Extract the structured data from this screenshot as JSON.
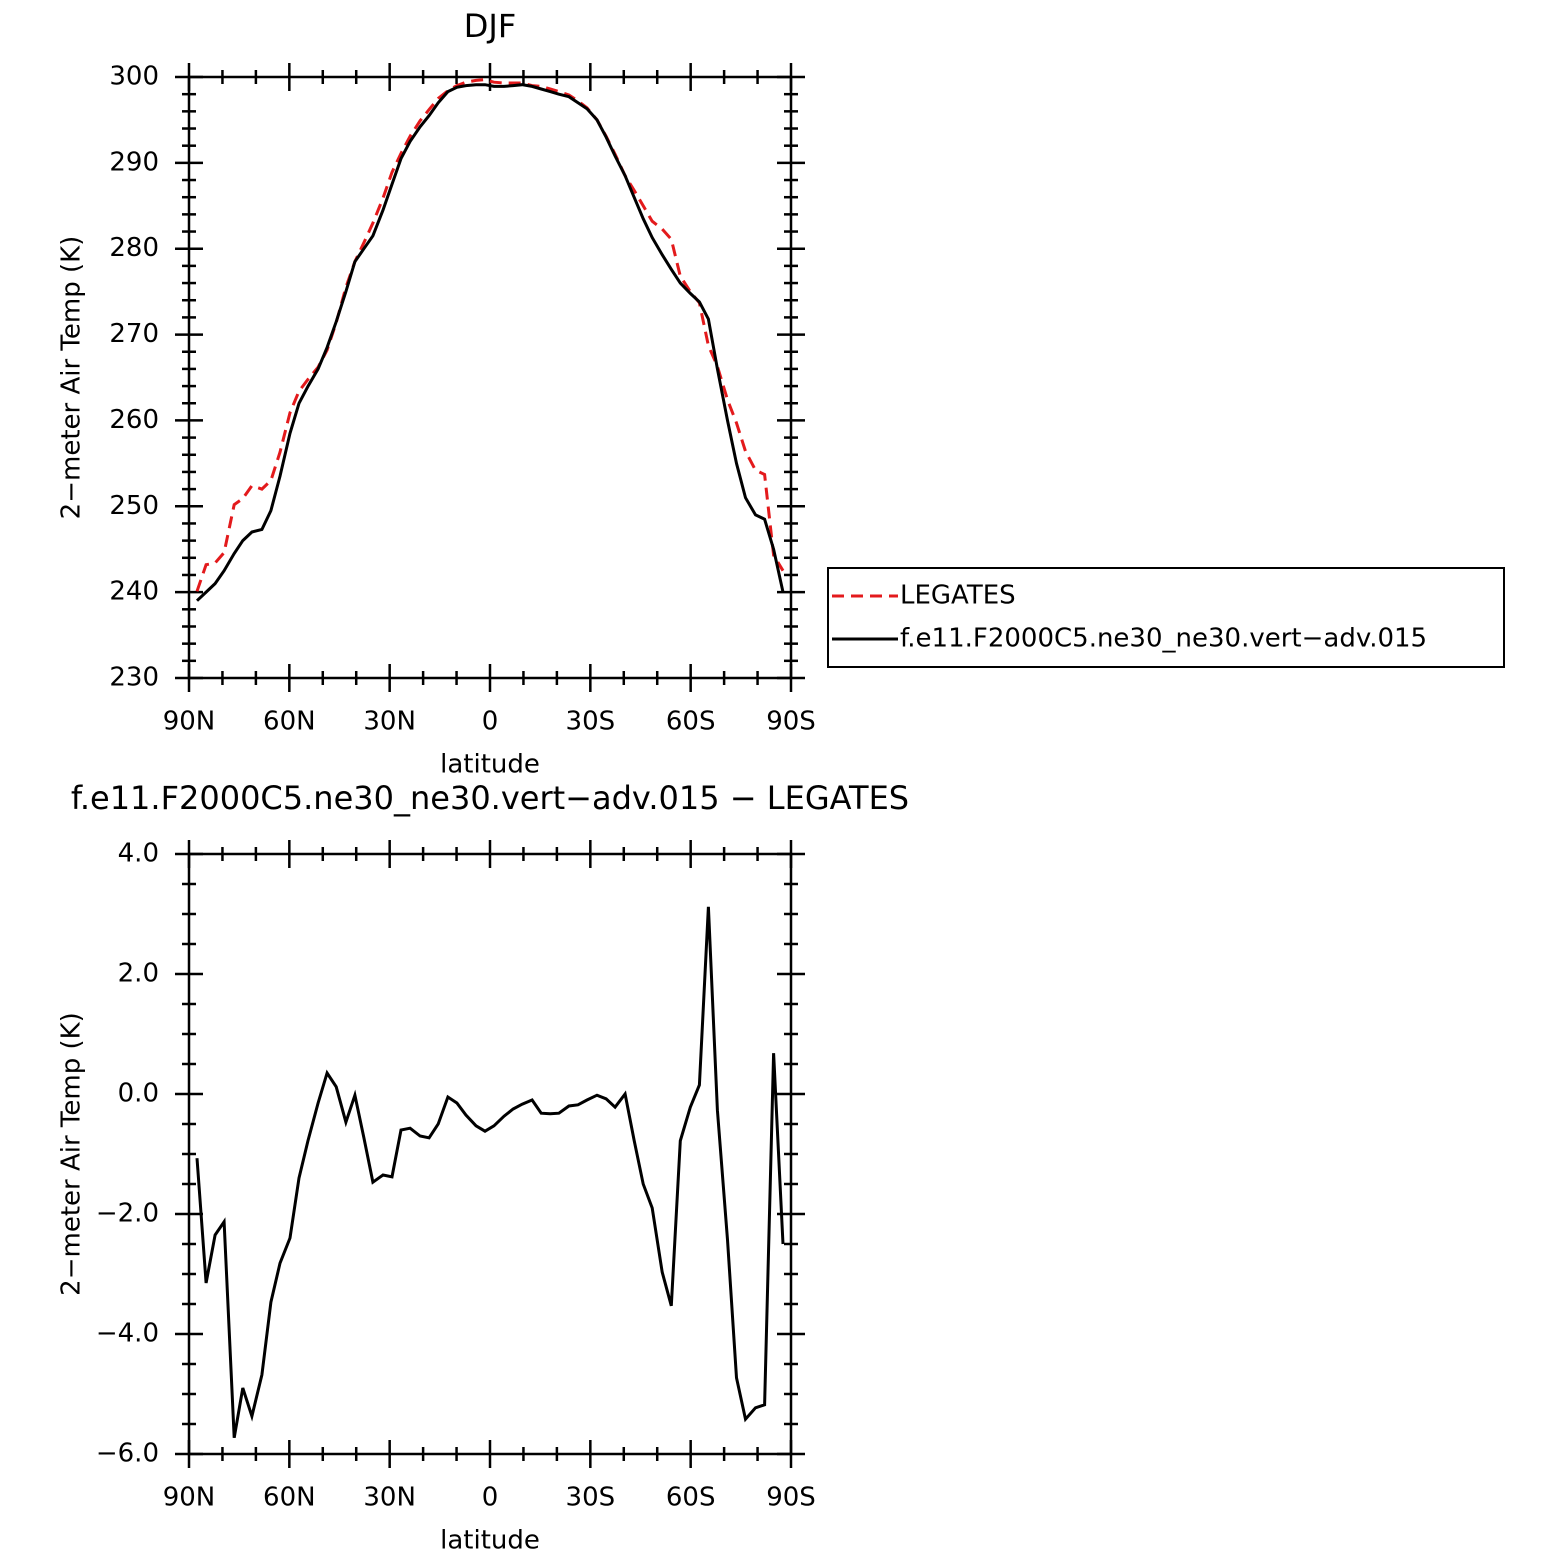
{
  "chart_data": [
    {
      "type": "line",
      "title": "DJF",
      "x_label": "latitude",
      "y_label": "2−meter Air Temp (K)",
      "x": [
        87.6,
        84.9,
        82.2,
        79.5,
        76.5,
        73.9,
        71.2,
        68.2,
        65.5,
        62.8,
        59.8,
        57.1,
        54.4,
        51.4,
        48.7,
        46.0,
        43.1,
        40.4,
        37.7,
        35.0,
        32.0,
        29.3,
        26.6,
        23.9,
        20.9,
        18.2,
        15.5,
        12.6,
        9.9,
        7.2,
        4.2,
        1.5,
        -1.2,
        -4.2,
        -6.9,
        -9.6,
        -12.6,
        -15.3,
        -18.0,
        -20.6,
        -23.6,
        -26.3,
        -29.0,
        -32.0,
        -34.7,
        -37.4,
        -40.4,
        -43.1,
        -45.8,
        -48.5,
        -51.5,
        -54.2,
        -56.9,
        -59.9,
        -62.6,
        -65.3,
        -68.0,
        -71.0,
        -73.7,
        -76.4,
        -79.4,
        -82.1,
        -84.8,
        -87.6
      ],
      "xlim": [
        90,
        -90
      ],
      "xticks": [
        {
          "value": 90,
          "label": "90N"
        },
        {
          "value": 60,
          "label": "60N"
        },
        {
          "value": 30,
          "label": "30N"
        },
        0,
        {
          "value": -30,
          "label": "30S"
        },
        {
          "value": -60,
          "label": "60S"
        },
        {
          "value": -90,
          "label": "90S"
        }
      ],
      "minor_xticks": [
        80,
        70,
        50,
        40,
        20,
        10,
        -10,
        -20,
        -40,
        -50,
        -70,
        -80
      ],
      "ylim": [
        230,
        300
      ],
      "yticks": [
        230,
        240,
        250,
        260,
        270,
        280,
        290,
        300
      ],
      "minor_yticks": [
        232,
        234,
        236,
        238,
        242,
        244,
        246,
        248,
        252,
        254,
        256,
        258,
        262,
        264,
        266,
        268,
        272,
        274,
        276,
        278,
        282,
        284,
        286,
        288,
        292,
        294,
        296,
        298
      ],
      "legend": "right",
      "series": [
        {
          "name": "LEGATES",
          "color": "#e31a1c",
          "dashed": true,
          "values": [
            240.1,
            243.2,
            243.4,
            244.6,
            250.2,
            250.9,
            252.4,
            252.0,
            253.0,
            256.3,
            260.9,
            263.4,
            264.8,
            266.2,
            268.2,
            271.4,
            275.5,
            278.5,
            280.7,
            283.0,
            285.9,
            288.9,
            291.1,
            293.1,
            294.9,
            296.2,
            297.5,
            298.4,
            299.0,
            299.4,
            299.6,
            299.7,
            299.4,
            299.3,
            299.3,
            299.3,
            299.0,
            298.9,
            298.6,
            298.3,
            297.9,
            297.2,
            296.4,
            295.0,
            293.1,
            291.0,
            288.5,
            286.8,
            285.0,
            283.2,
            282.3,
            281.1,
            276.8,
            275.0,
            273.7,
            268.7,
            266.3,
            262.4,
            259.7,
            256.4,
            254.2,
            253.7,
            244.3,
            242.5
          ]
        },
        {
          "name": "f.e11.F2000C5.ne30_ne30.vert−adv.015",
          "color": "#000000",
          "dashed": false,
          "values": [
            239.0,
            240.0,
            241.0,
            242.5,
            244.5,
            246.0,
            247.0,
            247.3,
            249.5,
            253.5,
            258.5,
            262.0,
            264.0,
            266.0,
            268.5,
            271.5,
            275.0,
            278.5,
            280.0,
            281.5,
            284.5,
            287.5,
            290.5,
            292.5,
            294.2,
            295.5,
            297.0,
            298.3,
            298.8,
            299.0,
            299.1,
            299.1,
            298.9,
            298.9,
            299.0,
            299.1,
            298.9,
            298.6,
            298.3,
            298.0,
            297.7,
            297.0,
            296.3,
            295.0,
            293.0,
            290.8,
            288.5,
            286.0,
            283.5,
            281.3,
            279.3,
            277.6,
            276.0,
            274.8,
            273.8,
            271.8,
            266.0,
            260.0,
            255.0,
            251.0,
            249.0,
            248.5,
            245.0,
            240.0
          ]
        }
      ]
    },
    {
      "type": "line",
      "title": "f.e11.F2000C5.ne30_ne30.vert−adv.015 − LEGATES",
      "x_label": "latitude",
      "y_label": "2−meter Air Temp (K)",
      "x": [
        87.6,
        84.9,
        82.2,
        79.5,
        76.5,
        73.9,
        71.2,
        68.2,
        65.5,
        62.8,
        59.8,
        57.1,
        54.4,
        51.4,
        48.7,
        46.0,
        43.1,
        40.4,
        37.7,
        35.0,
        32.0,
        29.3,
        26.6,
        23.9,
        20.9,
        18.2,
        15.5,
        12.6,
        9.9,
        7.2,
        4.2,
        1.5,
        -1.2,
        -4.2,
        -6.9,
        -9.6,
        -12.6,
        -15.3,
        -18.0,
        -20.6,
        -23.6,
        -26.3,
        -29.0,
        -32.0,
        -34.7,
        -37.4,
        -40.4,
        -43.1,
        -45.8,
        -48.5,
        -51.5,
        -54.2,
        -56.9,
        -59.9,
        -62.6,
        -65.3,
        -68.0,
        -71.0,
        -73.7,
        -76.4,
        -79.4,
        -82.1,
        -84.8,
        -87.6
      ],
      "xlim": [
        90,
        -90
      ],
      "xticks": [
        {
          "value": 90,
          "label": "90N"
        },
        {
          "value": 60,
          "label": "60N"
        },
        {
          "value": 30,
          "label": "30N"
        },
        0,
        {
          "value": -30,
          "label": "30S"
        },
        {
          "value": -60,
          "label": "60S"
        },
        {
          "value": -90,
          "label": "90S"
        }
      ],
      "minor_xticks": [
        80,
        70,
        50,
        40,
        20,
        10,
        -10,
        -20,
        -40,
        -50,
        -70,
        -80
      ],
      "ylim": [
        -6,
        4
      ],
      "yticks": [
        {
          "value": -6,
          "label": "−6.0"
        },
        {
          "value": -4,
          "label": "−4.0"
        },
        {
          "value": -2,
          "label": "−2.0"
        },
        {
          "value": 0,
          "label": "0.0"
        },
        {
          "value": 2,
          "label": "2.0"
        },
        {
          "value": 4,
          "label": "4.0"
        }
      ],
      "minor_yticks": [
        -5.5,
        -5,
        -4.5,
        -3.5,
        -3,
        -2.5,
        -1.5,
        -1,
        -0.5,
        0.5,
        1,
        1.5,
        2.5,
        3,
        3.5
      ],
      "color": "#000000",
      "values": [
        -1.07,
        -3.15,
        -2.35,
        -2.13,
        -5.73,
        -4.9,
        -5.37,
        -4.68,
        -3.47,
        -2.82,
        -2.4,
        -1.4,
        -0.77,
        -0.15,
        0.35,
        0.12,
        -0.47,
        -0.02,
        -0.73,
        -1.47,
        -1.35,
        -1.38,
        -0.6,
        -0.57,
        -0.7,
        -0.73,
        -0.5,
        -0.05,
        -0.15,
        -0.35,
        -0.53,
        -0.62,
        -0.53,
        -0.37,
        -0.25,
        -0.17,
        -0.1,
        -0.32,
        -0.33,
        -0.32,
        -0.2,
        -0.18,
        -0.1,
        -0.02,
        -0.08,
        -0.22,
        0.0,
        -0.77,
        -1.5,
        -1.9,
        -2.97,
        -3.53,
        -0.78,
        -0.22,
        0.15,
        3.12,
        -0.27,
        -2.43,
        -4.73,
        -5.42,
        -5.23,
        -5.18,
        0.68,
        -2.5
      ]
    }
  ]
}
